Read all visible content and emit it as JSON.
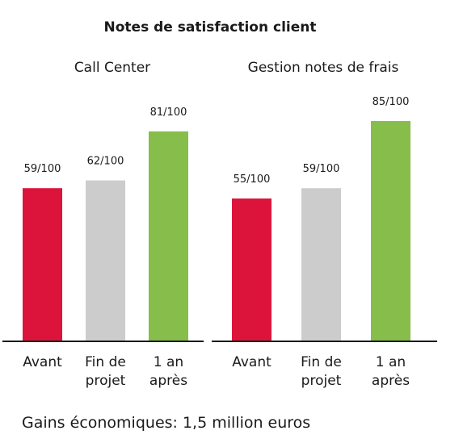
{
  "chart_data": [
    {
      "type": "bar",
      "title": "Notes de satisfaction client",
      "subtitle": "Call Center",
      "categories": [
        "Avant",
        "Fin de projet",
        "1 an après"
      ],
      "category_lines": [
        [
          "Avant"
        ],
        [
          "Fin de",
          "projet"
        ],
        [
          "1 an",
          "après"
        ]
      ],
      "values": [
        59,
        62,
        81
      ],
      "value_labels": [
        "59/100",
        "62/100",
        "81/100"
      ],
      "bar_colors": [
        "#dc143c",
        "#cccccc",
        "#87bd4a"
      ],
      "ylim": [
        0,
        100
      ],
      "grid": false,
      "legend": "none"
    },
    {
      "type": "bar",
      "subtitle": "Gestion notes de frais",
      "categories": [
        "Avant",
        "Fin de projet",
        "1 an après"
      ],
      "category_lines": [
        [
          "Avant"
        ],
        [
          "Fin de",
          "projet"
        ],
        [
          "1 an",
          "après"
        ]
      ],
      "values": [
        55,
        59,
        85
      ],
      "value_labels": [
        "55/100",
        "59/100",
        "85/100"
      ],
      "bar_colors": [
        "#dc143c",
        "#cccccc",
        "#87bd4a"
      ],
      "ylim": [
        0,
        100
      ],
      "grid": false,
      "legend": "none"
    }
  ],
  "footer": "Gains économiques: 1,5 million euros",
  "colors": {
    "baseline": "#1a1a1a",
    "text": "#1a1a1a"
  }
}
